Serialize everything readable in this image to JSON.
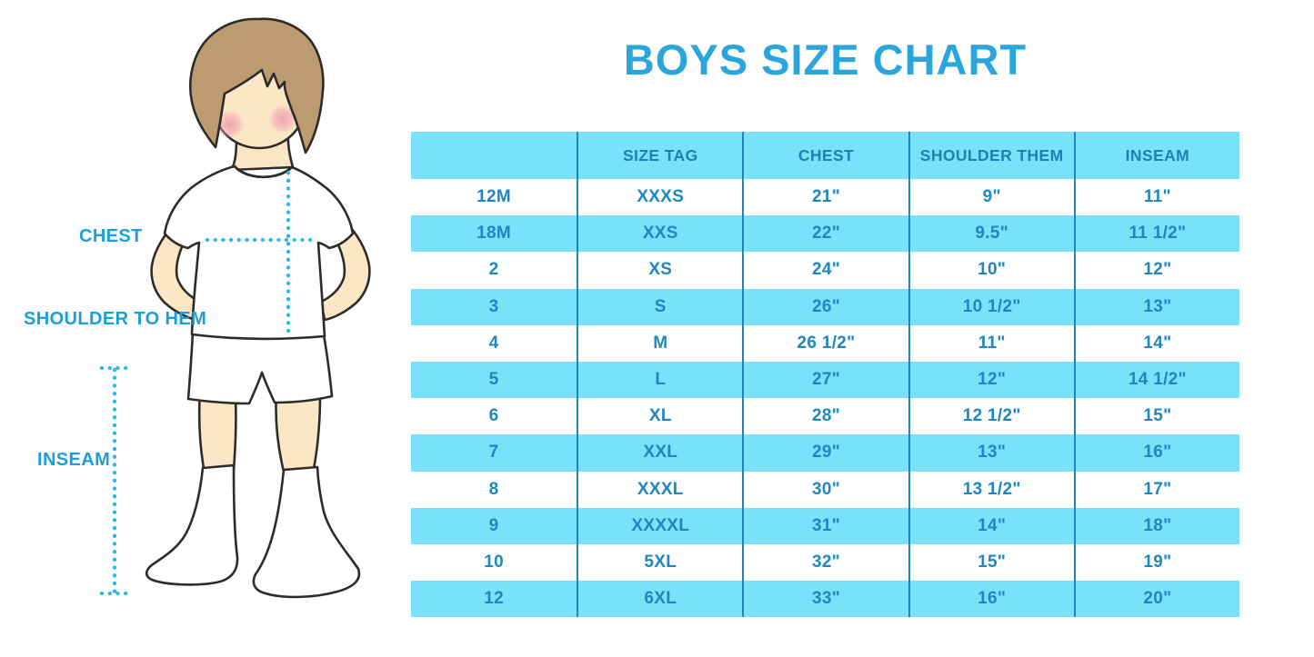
{
  "title": "BOYS SIZE CHART",
  "figure": {
    "labels": {
      "chest": "CHEST",
      "shoulder_to_hem": "SHOULDER TO HEM",
      "inseam": "INSEAM"
    }
  },
  "chart_data": {
    "type": "table",
    "title": "BOYS SIZE CHART",
    "columns": [
      "",
      "SIZE TAG",
      "CHEST",
      "SHOULDER THEM",
      "INSEAM"
    ],
    "rows": [
      [
        "12M",
        "XXXS",
        "21\"",
        "9\"",
        "11\""
      ],
      [
        "18M",
        "XXS",
        "22\"",
        "9.5\"",
        "11 1/2\""
      ],
      [
        "2",
        "XS",
        "24\"",
        "10\"",
        "12\""
      ],
      [
        "3",
        "S",
        "26\"",
        "10 1/2\"",
        "13\""
      ],
      [
        "4",
        "M",
        "26 1/2\"",
        "11\"",
        "14\""
      ],
      [
        "5",
        "L",
        "27\"",
        "12\"",
        "14 1/2\""
      ],
      [
        "6",
        "XL",
        "28\"",
        "12 1/2\"",
        "15\""
      ],
      [
        "7",
        "XXL",
        "29\"",
        "13\"",
        "16\""
      ],
      [
        "8",
        "XXXL",
        "30\"",
        "13 1/2\"",
        "17\""
      ],
      [
        "9",
        "XXXXL",
        "31\"",
        "14\"",
        "18\""
      ],
      [
        "10",
        "5XL",
        "32\"",
        "15\"",
        "19\""
      ],
      [
        "12",
        "6XL",
        "33\"",
        "16\"",
        "20\""
      ]
    ],
    "banding": "alternating white and cyan rows, header cyan",
    "grid": "vertical column separators only"
  },
  "colors": {
    "title_blue": "#2BA6DD",
    "label_blue": "#1C9FD8",
    "band_cyan": "#79E1F9",
    "header_text": "#1C82B2",
    "table_text": "#1E87C0",
    "separator": "#1F86B8",
    "dotted_line": "#30B7E8",
    "skin": "#FBE7C6",
    "hair": "#BC9B71",
    "cheek": "#F0A3B4",
    "outline": "#2E2C2A"
  }
}
